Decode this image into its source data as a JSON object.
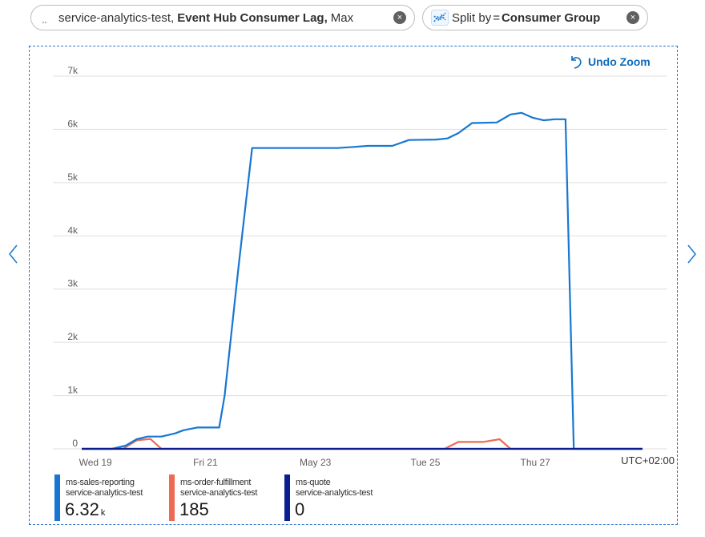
{
  "metric_pill": {
    "resource": "service-analytics-test,",
    "metric": "Event Hub Consumer Lag,",
    "aggregation": "Max",
    "close_glyph": "×"
  },
  "split_pill": {
    "label": "Split by",
    "equals": "=",
    "dimension": "Consumer Group",
    "close_glyph": "×"
  },
  "undo_zoom_label": "Undo Zoom",
  "timezone_label": "UTC+02:00",
  "icons": [
    "drag-handle-icon",
    "close-icon",
    "split-icon",
    "undo-icon",
    "chevron-left-icon",
    "chevron-right-icon"
  ],
  "legend": [
    {
      "name": "ms-sales-reporting",
      "resource": "service-analytics-test",
      "value": "6.32",
      "unit": "k",
      "color": "#1677d2"
    },
    {
      "name": "ms-order-fulfillment",
      "resource": "service-analytics-test",
      "value": "185",
      "unit": "",
      "color": "#ec6b52"
    },
    {
      "name": "ms-quote",
      "resource": "service-analytics-test",
      "value": "0",
      "unit": "",
      "color": "#0a1f8f"
    }
  ],
  "chart_data": {
    "type": "line",
    "title": "",
    "xlabel": "",
    "ylabel": "",
    "ylim": [
      0,
      7000
    ],
    "y_ticks": [
      0,
      1000,
      2000,
      3000,
      4000,
      5000,
      6000,
      7000
    ],
    "y_tick_labels": [
      "0",
      "1k",
      "2k",
      "3k",
      "4k",
      "5k",
      "6k",
      "7k"
    ],
    "x_range_days": [
      18.75,
      28.95
    ],
    "x_ticks": [
      19,
      21,
      23,
      25,
      27
    ],
    "x_tick_labels": [
      "Wed 19",
      "Fri 21",
      "May 23",
      "Tue 25",
      "Thu 27"
    ],
    "grid": true,
    "series": [
      {
        "name": "ms-sales-reporting",
        "color": "#1677d2",
        "x": [
          18.75,
          19.3,
          19.55,
          19.75,
          19.95,
          20.2,
          20.45,
          20.6,
          20.85,
          21.25,
          21.35,
          21.6,
          21.85,
          22.2,
          23.4,
          23.7,
          23.95,
          24.4,
          24.7,
          25.2,
          25.4,
          25.6,
          25.85,
          26.3,
          26.55,
          26.75,
          26.95,
          27.15,
          27.35,
          27.55,
          27.7,
          27.95,
          28.1,
          28.95
        ],
        "y": [
          0,
          0,
          60,
          180,
          230,
          230,
          290,
          350,
          400,
          400,
          1000,
          3400,
          5650,
          5650,
          5650,
          5670,
          5690,
          5690,
          5800,
          5810,
          5830,
          5930,
          6120,
          6130,
          6280,
          6310,
          6220,
          6170,
          6190,
          6190,
          0,
          0,
          0,
          0
        ]
      },
      {
        "name": "ms-order-fulfillment",
        "color": "#ec6b52",
        "x": [
          18.75,
          19.5,
          19.75,
          20.0,
          20.2,
          28.95
        ],
        "x2": [
          18.75,
          25.35,
          25.6,
          26.05,
          26.35,
          26.55,
          28.95
        ],
        "y": [
          0,
          0,
          160,
          185,
          0,
          0
        ],
        "y2": [
          0,
          0,
          130,
          130,
          180,
          0,
          0
        ]
      },
      {
        "name": "ms-quote",
        "color": "#0a1f8f",
        "x": [
          18.75,
          28.95
        ],
        "y": [
          0,
          0
        ]
      }
    ]
  }
}
